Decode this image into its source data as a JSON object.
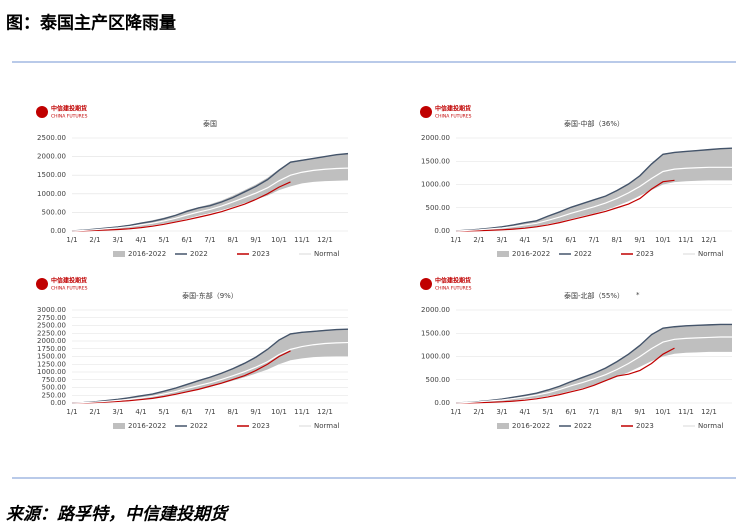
{
  "header": {
    "title": "图：泰国主产区降雨量"
  },
  "logo": {
    "name": "中信建投期货",
    "sub": "CHINA FUTURES"
  },
  "footer": {
    "source": "来源：路孚特，中信建投期货"
  },
  "chart_data": [
    {
      "type": "line",
      "title": "泰国",
      "categories": [
        "1/1",
        null,
        "2/1",
        null,
        "3/1",
        null,
        "4/1",
        null,
        "5/1",
        null,
        "6/1",
        null,
        "7/1",
        null,
        "8/1",
        null,
        "9/1",
        null,
        "10/1",
        null,
        "11/1",
        null,
        "12/1",
        null,
        null
      ],
      "ylim": [
        0,
        2500
      ],
      "yticks": [
        {
          "value": 0,
          "label": "0.00"
        },
        {
          "value": 500,
          "label": "500.00"
        },
        {
          "value": 1000,
          "label": "1000.00"
        },
        {
          "value": 1500,
          "label": "1500.00"
        },
        {
          "value": 2000,
          "label": "2000.00"
        },
        {
          "value": 2500,
          "label": "2500.00"
        }
      ],
      "legend": "bottom",
      "series": [
        {
          "name": "2016-2022",
          "color": "#bfbfbf",
          "low": [
            0,
            5,
            15,
            30,
            50,
            80,
            110,
            150,
            200,
            260,
            330,
            410,
            480,
            560,
            650,
            750,
            850,
            950,
            1100,
            1200,
            1280,
            1320,
            1340,
            1350,
            1360
          ],
          "high": [
            0,
            30,
            60,
            90,
            120,
            170,
            230,
            290,
            360,
            440,
            560,
            640,
            720,
            820,
            950,
            1100,
            1250,
            1430,
            1660,
            1870,
            1920,
            1960,
            2010,
            2060,
            2090
          ]
        },
        {
          "name": "2022",
          "color": "#44546a",
          "values": [
            0,
            20,
            50,
            80,
            110,
            150,
            210,
            260,
            330,
            420,
            530,
            620,
            680,
            780,
            900,
            1050,
            1200,
            1380,
            1630,
            1850,
            1900,
            1950,
            2000,
            2050,
            2080
          ]
        },
        {
          "name": "2023",
          "color": "#c00000",
          "values": [
            0,
            5,
            15,
            25,
            40,
            60,
            90,
            130,
            180,
            240,
            300,
            370,
            440,
            520,
            620,
            720,
            850,
            1000,
            1180,
            1320,
            null,
            null,
            null,
            null,
            null
          ]
        },
        {
          "name": "Normal",
          "color": "#ffffff",
          "values": [
            0,
            15,
            35,
            60,
            85,
            120,
            165,
            210,
            270,
            340,
            430,
            510,
            580,
            670,
            780,
            900,
            1020,
            1160,
            1350,
            1500,
            1580,
            1630,
            1660,
            1680,
            1690
          ]
        }
      ]
    },
    {
      "type": "line",
      "title": "泰国-中部（36%）",
      "categories": [
        "1/1",
        null,
        "2/1",
        null,
        "3/1",
        null,
        "4/1",
        null,
        "5/1",
        null,
        "6/1",
        null,
        "7/1",
        null,
        "8/1",
        null,
        "9/1",
        null,
        "10/1",
        null,
        "11/1",
        null,
        "12/1",
        null,
        null
      ],
      "ylim": [
        0,
        2000
      ],
      "yticks": [
        {
          "value": 0,
          "label": "0.00"
        },
        {
          "value": 500,
          "label": "500.00"
        },
        {
          "value": 1000,
          "label": "1000.00"
        },
        {
          "value": 1500,
          "label": "1500.00"
        },
        {
          "value": 2000,
          "label": "2000.00"
        }
      ],
      "legend": "bottom",
      "series": [
        {
          "name": "2016-2022",
          "color": "#bfbfbf",
          "low": [
            0,
            5,
            10,
            20,
            30,
            50,
            70,
            100,
            150,
            200,
            260,
            320,
            380,
            450,
            540,
            640,
            760,
            880,
            1000,
            1050,
            1070,
            1080,
            1090,
            1090,
            1090
          ],
          "high": [
            0,
            20,
            40,
            70,
            100,
            140,
            190,
            230,
            330,
            420,
            520,
            600,
            680,
            760,
            880,
            1020,
            1200,
            1450,
            1660,
            1700,
            1720,
            1740,
            1760,
            1780,
            1790
          ]
        },
        {
          "name": "2022",
          "color": "#44546a",
          "values": [
            0,
            18,
            35,
            60,
            90,
            130,
            180,
            220,
            320,
            410,
            510,
            590,
            670,
            750,
            870,
            1010,
            1190,
            1440,
            1650,
            1690,
            1710,
            1730,
            1750,
            1770,
            1780
          ]
        },
        {
          "name": "2023",
          "color": "#c00000",
          "values": [
            0,
            3,
            8,
            15,
            25,
            40,
            60,
            90,
            130,
            180,
            240,
            300,
            360,
            420,
            500,
            580,
            700,
            900,
            1060,
            1090,
            null,
            null,
            null,
            null,
            null
          ]
        },
        {
          "name": "Normal",
          "color": "#ffffff",
          "values": [
            0,
            12,
            25,
            45,
            65,
            95,
            130,
            165,
            230,
            300,
            380,
            450,
            520,
            600,
            700,
            820,
            960,
            1130,
            1280,
            1330,
            1350,
            1360,
            1370,
            1370,
            1370
          ]
        }
      ]
    },
    {
      "type": "line",
      "title": "泰国-东部（9%）",
      "categories": [
        "1/1",
        null,
        "2/1",
        null,
        "3/1",
        null,
        "4/1",
        null,
        "5/1",
        null,
        "6/1",
        null,
        "7/1",
        null,
        "8/1",
        null,
        "9/1",
        null,
        "10/1",
        null,
        "11/1",
        null,
        "12/1",
        null,
        null
      ],
      "ylim": [
        0,
        3000
      ],
      "yticks": [
        {
          "value": 0,
          "label": "0.00"
        },
        {
          "value": 250,
          "label": "250.00"
        },
        {
          "value": 500,
          "label": "500.00"
        },
        {
          "value": 750,
          "label": "750.00"
        },
        {
          "value": 1000,
          "label": "1000.00"
        },
        {
          "value": 1250,
          "label": "1250.00"
        },
        {
          "value": 1500,
          "label": "1500.00"
        },
        {
          "value": 1750,
          "label": "1750.00"
        },
        {
          "value": 2000,
          "label": "2000.00"
        },
        {
          "value": 2250,
          "label": "2250.00"
        },
        {
          "value": 2500,
          "label": "2500.00"
        },
        {
          "value": 2750,
          "label": "2750.00"
        },
        {
          "value": 3000,
          "label": "3000.00"
        }
      ],
      "legend": "bottom",
      "series": [
        {
          "name": "2016-2022",
          "color": "#bfbfbf",
          "low": [
            0,
            5,
            15,
            30,
            50,
            80,
            110,
            150,
            200,
            270,
            350,
            430,
            520,
            620,
            720,
            830,
            950,
            1080,
            1250,
            1380,
            1440,
            1480,
            1500,
            1510,
            1510
          ],
          "high": [
            0,
            20,
            50,
            90,
            130,
            180,
            240,
            300,
            400,
            500,
            620,
            740,
            850,
            980,
            1130,
            1300,
            1500,
            1750,
            2050,
            2250,
            2300,
            2330,
            2360,
            2380,
            2390
          ]
        },
        {
          "name": "2022",
          "color": "#44546a",
          "values": [
            0,
            15,
            40,
            80,
            120,
            170,
            230,
            290,
            380,
            480,
            600,
            720,
            830,
            960,
            1110,
            1280,
            1480,
            1730,
            2030,
            2230,
            2280,
            2310,
            2340,
            2370,
            2380
          ]
        },
        {
          "name": "2023",
          "color": "#c00000",
          "values": [
            0,
            5,
            15,
            30,
            50,
            75,
            110,
            150,
            210,
            280,
            360,
            440,
            540,
            640,
            760,
            880,
            1050,
            1250,
            1500,
            1680,
            null,
            null,
            null,
            null,
            null
          ]
        },
        {
          "name": "Normal",
          "color": "#ffffff",
          "values": [
            0,
            12,
            30,
            55,
            85,
            120,
            165,
            215,
            290,
            370,
            470,
            560,
            650,
            760,
            880,
            1010,
            1160,
            1330,
            1560,
            1730,
            1820,
            1880,
            1920,
            1940,
            1950
          ]
        }
      ]
    },
    {
      "type": "line",
      "title": "泰国-北部（55%）",
      "annotation": "*",
      "categories": [
        "1/1",
        null,
        "2/1",
        null,
        "3/1",
        null,
        "4/1",
        null,
        "5/1",
        null,
        "6/1",
        null,
        "7/1",
        null,
        "8/1",
        null,
        "9/1",
        null,
        "10/1",
        null,
        "11/1",
        null,
        "12/1",
        null,
        null
      ],
      "ylim": [
        0,
        2000
      ],
      "yticks": [
        {
          "value": 0,
          "label": "0.00"
        },
        {
          "value": 500,
          "label": "500.00"
        },
        {
          "value": 1000,
          "label": "1000.00"
        },
        {
          "value": 1500,
          "label": "1500.00"
        },
        {
          "value": 2000,
          "label": "2000.00"
        }
      ],
      "legend": "bottom",
      "series": [
        {
          "name": "2016-2022",
          "color": "#bfbfbf",
          "low": [
            0,
            3,
            10,
            20,
            35,
            55,
            80,
            110,
            150,
            200,
            260,
            320,
            390,
            470,
            560,
            660,
            780,
            900,
            1000,
            1060,
            1080,
            1090,
            1100,
            1100,
            1100
          ],
          "high": [
            0,
            15,
            35,
            60,
            90,
            130,
            170,
            220,
            290,
            370,
            470,
            560,
            650,
            760,
            900,
            1060,
            1250,
            1480,
            1620,
            1650,
            1670,
            1680,
            1690,
            1700,
            1700
          ]
        },
        {
          "name": "2022",
          "color": "#44546a",
          "values": [
            0,
            12,
            30,
            55,
            85,
            125,
            165,
            210,
            280,
            360,
            460,
            550,
            640,
            750,
            890,
            1050,
            1240,
            1470,
            1610,
            1640,
            1660,
            1670,
            1680,
            1690,
            1690
          ]
        },
        {
          "name": "2023",
          "color": "#c00000",
          "values": [
            0,
            3,
            8,
            15,
            25,
            40,
            60,
            90,
            130,
            180,
            240,
            300,
            380,
            480,
            580,
            620,
            700,
            850,
            1050,
            1180,
            null,
            null,
            null,
            null,
            null
          ]
        },
        {
          "name": "Normal",
          "color": "#ffffff",
          "values": [
            0,
            10,
            25,
            45,
            65,
            95,
            130,
            170,
            220,
            290,
            370,
            440,
            520,
            610,
            720,
            850,
            1000,
            1170,
            1310,
            1370,
            1390,
            1400,
            1410,
            1420,
            1420
          ]
        }
      ]
    }
  ]
}
